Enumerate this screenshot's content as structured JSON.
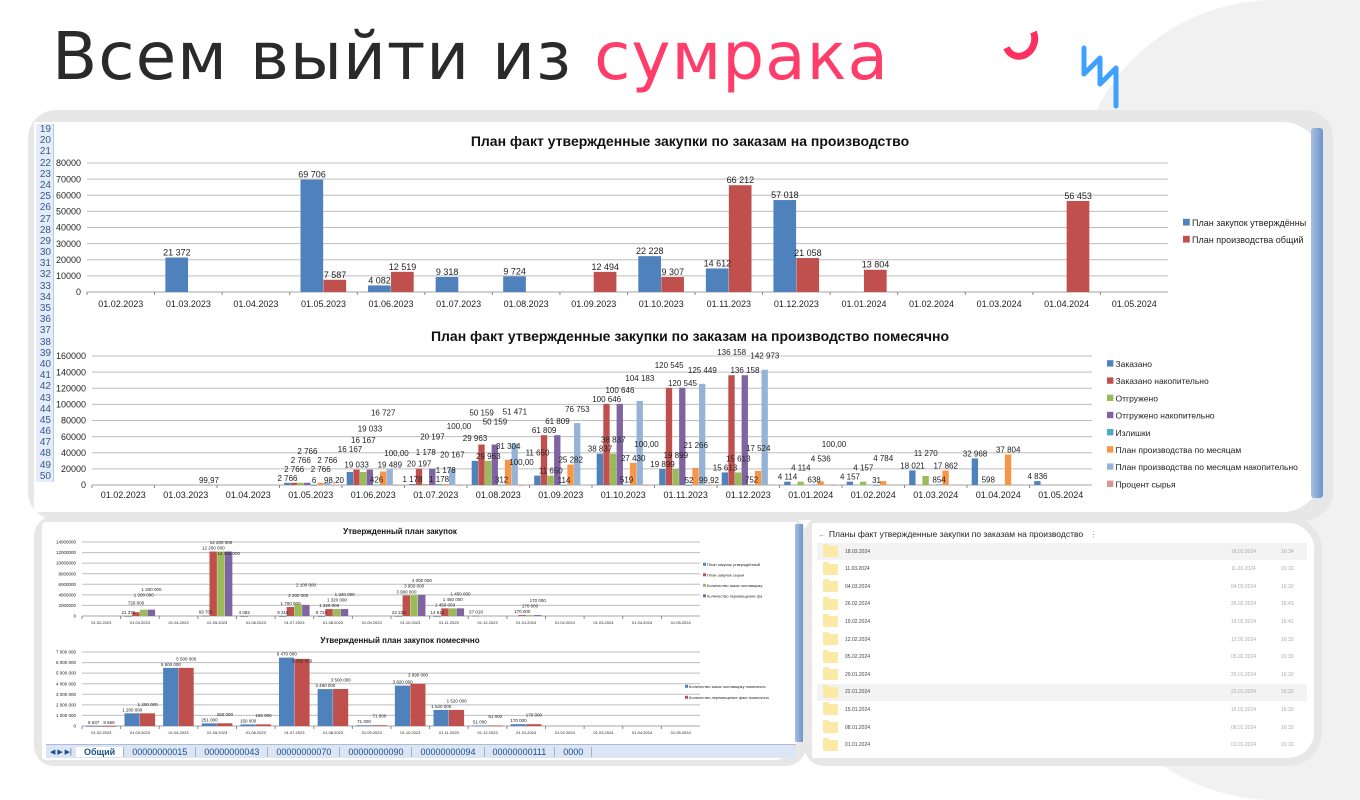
{
  "slide": {
    "title_main": "Всем выйти из ",
    "title_accent": "сумрака",
    "accent_color": "#ff3d6b"
  },
  "excel_top": {
    "row_numbers": [
      19,
      20,
      21,
      22,
      23,
      24,
      25,
      26,
      27,
      28,
      29,
      30,
      31,
      32,
      33,
      34,
      35,
      36,
      37,
      38,
      39,
      40,
      41,
      42,
      43,
      44,
      45,
      46,
      47,
      48,
      49,
      50
    ]
  },
  "sheet_tabs": [
    "Общий",
    "00000000015",
    "00000000043",
    "00000000070",
    "00000000090",
    "00000000094",
    "00000000111",
    "0000"
  ],
  "file_list": {
    "title": "Планы факт утвержденные закупки по заказам на производство",
    "menu_icon": "kebab-menu-icon",
    "items": [
      {
        "name": "18.03.2024",
        "date": "18.03.2024",
        "time": "16:34"
      },
      {
        "name": "11.03.2024",
        "date": "11.03.2024",
        "time": "16:32"
      },
      {
        "name": "04.03.2024",
        "date": "04.03.2024",
        "time": "16:33"
      },
      {
        "name": "26.02.2024",
        "date": "26.02.2024",
        "time": "16:43"
      },
      {
        "name": "19.02.2024",
        "date": "19.02.2024",
        "time": "16:41"
      },
      {
        "name": "12.02.2024",
        "date": "12.02.2024",
        "time": "16:33"
      },
      {
        "name": "05.02.2024",
        "date": "05.02.2024",
        "time": "16:33"
      },
      {
        "name": "29.01.2024",
        "date": "29.01.2024",
        "time": "16:33"
      },
      {
        "name": "22.01.2024",
        "date": "22.01.2024",
        "time": "16:33"
      },
      {
        "name": "15.01.2024",
        "date": "15.01.2024",
        "time": "16:33"
      },
      {
        "name": "08.01.2024",
        "date": "08.01.2024",
        "time": "16:33"
      },
      {
        "name": "01.01.2024",
        "date": "01.01.2024",
        "time": "16:32"
      }
    ]
  },
  "chart_data": [
    {
      "type": "bar",
      "title": "План факт утвержденные закупки по заказам на производство",
      "categories": [
        "01.02.2023",
        "01.03.2023",
        "01.04.2023",
        "01.05.2023",
        "01.06.2023",
        "01.07.2023",
        "01.08.2023",
        "01.09.2023",
        "01.10.2023",
        "01.11.2023",
        "01.12.2023",
        "01.01.2024",
        "01.02.2024",
        "01.03.2024",
        "01.04.2024",
        "01.05.2024"
      ],
      "ylim": [
        0,
        80000
      ],
      "yticks": [
        "0",
        "10000",
        "20000",
        "30000",
        "40000",
        "50000",
        "60000",
        "70000",
        "80000"
      ],
      "grid": true,
      "legend": "right",
      "series": [
        {
          "name": "План закупок утверждённы",
          "color": "#4f81bd",
          "values": [
            0,
            21372,
            0,
            69706,
            4082,
            9318,
            9724,
            0,
            22228,
            14612,
            57018,
            0,
            0,
            0,
            0,
            0
          ]
        },
        {
          "name": "План производства общий",
          "color": "#c0504d",
          "values": [
            0,
            0,
            0,
            7587,
            12519,
            0,
            0,
            12494,
            9307,
            66212,
            21058,
            13804,
            0,
            0,
            56453,
            0
          ]
        }
      ]
    },
    {
      "type": "bar",
      "title": "План факт утвержденные закупки по заказам на производство помесячно",
      "categories": [
        "01.02.2023",
        "01.03.2023",
        "01.04.2023",
        "01.05.2023",
        "01.06.2023",
        "01.07.2023",
        "01.08.2023",
        "01.09.2023",
        "01.10.2023",
        "01.11.2023",
        "01.12.2023",
        "01.01.2024",
        "01.02.2024",
        "01.03.2024",
        "01.04.2024",
        "01.05.2024"
      ],
      "ylim": [
        0,
        160000
      ],
      "yticks": [
        "0",
        "20000",
        "40000",
        "60000",
        "80000",
        "100000",
        "120000",
        "140000",
        "160000"
      ],
      "grid": true,
      "legend": "right",
      "series": [
        {
          "name": "Заказано",
          "color": "#4f81bd",
          "values": [
            0,
            0,
            0,
            2766,
            16167,
            1178,
            29963,
            11650,
            38837,
            19899,
            15613,
            4114,
            4157,
            18021,
            32968,
            4836
          ]
        },
        {
          "name": "Заказано накопительно",
          "color": "#c0504d",
          "values": [
            0,
            0,
            0,
            2766,
            19033,
            20197,
            50159,
            61809,
            100646,
            120545,
            136158,
            0,
            0,
            0,
            0,
            0
          ]
        },
        {
          "name": "Отгружено",
          "color": "#9bbb59",
          "values": [
            0,
            0,
            0,
            2766,
            16167,
            1178,
            29963,
            11650,
            38837,
            19899,
            15613,
            4114,
            4157,
            11270,
            598,
            0
          ]
        },
        {
          "name": "Отгружено накопительно",
          "color": "#8064a2",
          "values": [
            0,
            0,
            0,
            2766,
            19033,
            20197,
            50159,
            61809,
            100646,
            120545,
            136158,
            0,
            0,
            0,
            0,
            0
          ]
        },
        {
          "name": "Излишки",
          "color": "#4bacc6",
          "values": [
            0,
            0,
            0,
            6,
            426,
            1178,
            312,
            114,
            519,
            52,
            752,
            638,
            31,
            854,
            0,
            0
          ]
        },
        {
          "name": "План производства по месяцам",
          "color": "#f79646",
          "values": [
            0,
            0,
            0,
            2766,
            16727,
            1178,
            31304,
            25282,
            27430,
            21266,
            17524,
            4536,
            4784,
            17862,
            37804,
            0
          ]
        },
        {
          "name": "План производства по месяцам накопительно",
          "color": "#95b3d7",
          "values": [
            0,
            0,
            0,
            2766,
            19489,
            20167,
            51471,
            76753,
            104183,
            125449,
            142973,
            0,
            0,
            0,
            0,
            0
          ]
        },
        {
          "name": "Процент сырья",
          "color": "#d99694",
          "values": [
            0,
            99.97,
            0,
            98.2,
            100,
            100,
            100,
            0,
            100,
            99.92,
            0,
            100,
            0,
            0,
            0,
            0
          ]
        }
      ]
    },
    {
      "type": "bar",
      "title": "Утвержденный план закупок",
      "categories": [
        "01.02.2023",
        "01.03.2023",
        "01.04.2023",
        "01.05.2023",
        "01.06.2023",
        "01.07.2023",
        "01.08.2023",
        "01.09.2023",
        "01.10.2023",
        "01.11.2023",
        "01.12.2023",
        "01.01.2024",
        "01.02.2024",
        "01.03.2024",
        "01.04.2024",
        "01.05.2024"
      ],
      "ylim": [
        0,
        14000000
      ],
      "yticks": [
        "0",
        "2000000",
        "4000000",
        "6000000",
        "8000000",
        "10000000",
        "12000000",
        "14000000"
      ],
      "grid": true,
      "legend": "right",
      "series": [
        {
          "name": "План закупок утверждённый",
          "color": "#4f81bd",
          "values": [
            0,
            21372,
            0,
            69706,
            4082,
            9318,
            9724,
            0,
            22228,
            14612,
            57018,
            0,
            0,
            0,
            0,
            0
          ]
        },
        {
          "name": "План закупок сырья",
          "color": "#c0504d",
          "values": [
            0,
            720000,
            0,
            12200000,
            0,
            1700000,
            1320000,
            0,
            3900000,
            1450000,
            0,
            170000,
            0,
            0,
            0,
            0
          ]
        },
        {
          "name": "Количество заказ поставщику",
          "color": "#9bbb59",
          "values": [
            0,
            1200000,
            0,
            12200000,
            0,
            2200000,
            1320000,
            0,
            3950000,
            1450000,
            0,
            170000,
            0,
            0,
            0,
            0
          ]
        },
        {
          "name": "Количество перемещение фа",
          "color": "#8064a2",
          "values": [
            0,
            1200000,
            0,
            12200000,
            0,
            2100000,
            1320000,
            0,
            4000000,
            1450000,
            0,
            170000,
            0,
            0,
            0,
            0
          ]
        }
      ]
    },
    {
      "type": "bar",
      "title": "Утвержденный план закупок помесячно",
      "categories": [
        "01.02.2023",
        "01.03.2023",
        "01.04.2023",
        "01.05.2023",
        "01.06.2023",
        "01.07.2023",
        "01.08.2023",
        "01.09.2023",
        "01.10.2023",
        "01.11.2023",
        "01.12.2023",
        "01.01.2024",
        "01.02.2024",
        "01.03.2024",
        "01.04.2024",
        "01.05.2024"
      ],
      "ylim": [
        0,
        7000000
      ],
      "yticks": [
        "0",
        "1 000 000",
        "2 000 000",
        "3 000 000",
        "4 000 000",
        "5 000 000",
        "6 000 000",
        "7 000 000"
      ],
      "grid": true,
      "legend": "right",
      "series": [
        {
          "name": "Количество заказ поставщику помесячно",
          "color": "#4f81bd",
          "values": [
            8637,
            1200000,
            5500000,
            251000,
            150000,
            6470000,
            3490000,
            71000,
            3820000,
            1520000,
            51000,
            170000,
            0,
            0,
            0,
            0
          ]
        },
        {
          "name": "Количество перемещение факт помесячно",
          "color": "#c0504d",
          "values": [
            8666,
            1200000,
            5500000,
            260000,
            155000,
            6350000,
            3500000,
            71000,
            3990000,
            1520000,
            51000,
            170000,
            0,
            0,
            0,
            0
          ]
        }
      ]
    }
  ]
}
